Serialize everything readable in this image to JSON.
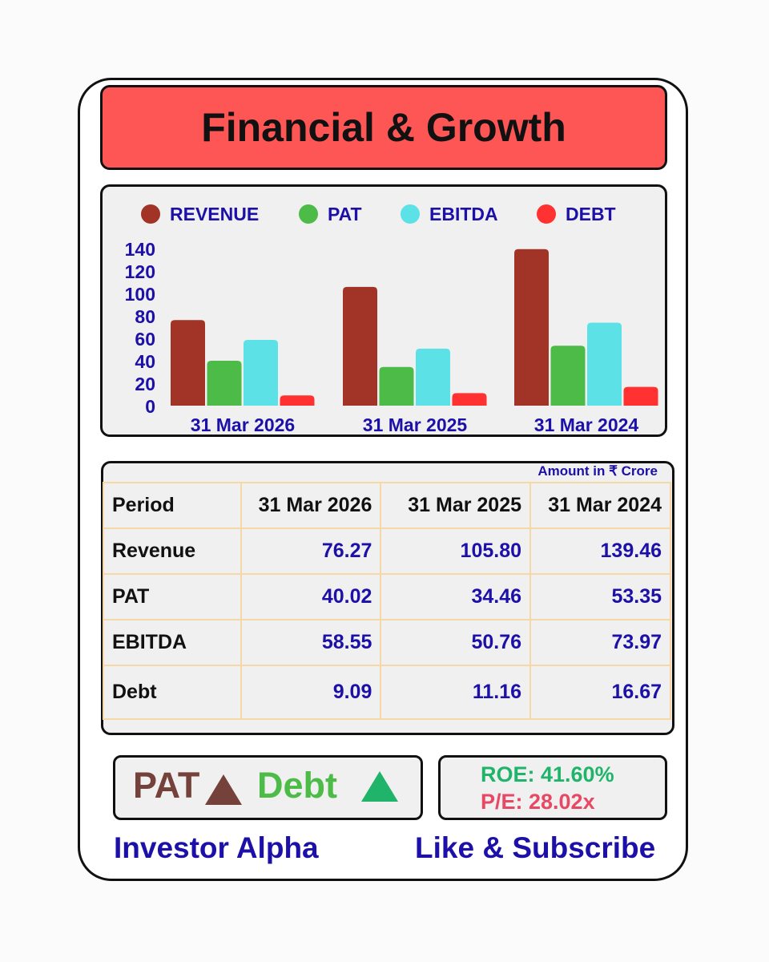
{
  "header": {
    "title": "Financial & Growth"
  },
  "chart_data": {
    "type": "bar",
    "categories": [
      "31 Mar 2026",
      "31 Mar 2025",
      "31 Mar 2024"
    ],
    "series": [
      {
        "name": "REVENUE",
        "values": [
          76.27,
          105.8,
          139.46
        ],
        "color": "#a13426"
      },
      {
        "name": "PAT",
        "values": [
          40.02,
          34.46,
          53.35
        ],
        "color": "#4cbb47"
      },
      {
        "name": "EBITDA",
        "values": [
          58.55,
          50.76,
          73.97
        ],
        "color": "#5ce1e6"
      },
      {
        "name": "DEBT",
        "values": [
          9.09,
          11.16,
          16.67
        ],
        "color": "#ff3131"
      }
    ],
    "yticks": [
      0,
      20,
      40,
      60,
      80,
      100,
      120,
      140
    ],
    "ylim": [
      0,
      140
    ],
    "legend": "top",
    "grid": false
  },
  "table": {
    "note": "Amount in ₹ Crore",
    "header": [
      "Period",
      "31 Mar 2026",
      "31 Mar 2025",
      "31 Mar 2024"
    ],
    "rows": [
      {
        "label": "Revenue",
        "values": [
          "76.27",
          "105.80",
          "139.46"
        ]
      },
      {
        "label": "PAT",
        "values": [
          "40.02",
          "34.46",
          "53.35"
        ]
      },
      {
        "label": "EBITDA",
        "values": [
          "58.55",
          "50.76",
          "73.97"
        ]
      },
      {
        "label": "Debt",
        "values": [
          "9.09",
          "11.16",
          "16.67"
        ]
      }
    ]
  },
  "trend": {
    "pat_label": "PAT",
    "pat_direction": "up",
    "pat_color": "#74423a",
    "debt_label": "Debt",
    "debt_direction": "up",
    "debt_color": "#1fb46a"
  },
  "ratios": {
    "roe": "ROE: 41.60%",
    "pe": "P/E: 28.02x"
  },
  "footer": {
    "brand": "Investor Alpha",
    "cta": "Like & Subscribe"
  }
}
